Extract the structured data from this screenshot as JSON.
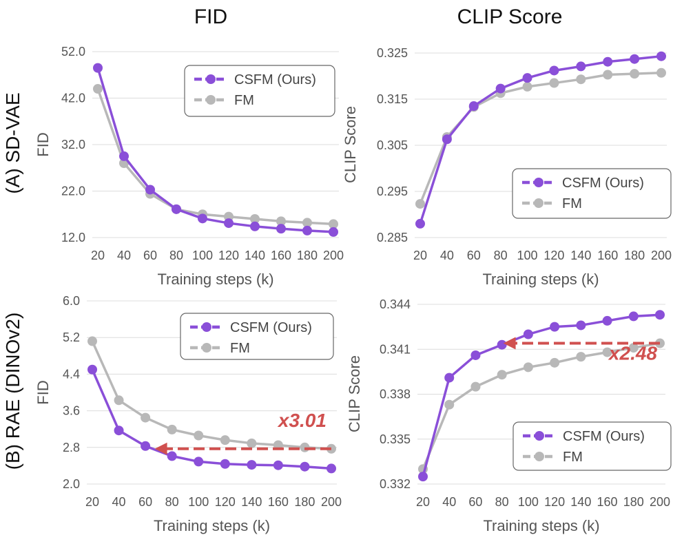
{
  "column_titles": [
    "FID",
    "CLIP Score"
  ],
  "row_titles": [
    "(A) SD-VAE",
    "(B) RAE (DINOv2)"
  ],
  "colors": {
    "csfm": "#8a4fd8",
    "fm": "#b8b8b8",
    "annotation": "#d0504f",
    "grid": "#dcdcdc"
  },
  "chart_data": [
    {
      "id": "a-fid",
      "type": "line",
      "title": "FID",
      "xlabel": "Training steps (k)",
      "ylabel": "FID",
      "x": [
        20,
        40,
        60,
        80,
        100,
        120,
        140,
        160,
        180,
        200
      ],
      "ylim": [
        12.0,
        52.0
      ],
      "yticks": [
        12.0,
        22.0,
        32.0,
        42.0,
        52.0
      ],
      "ytick_labels": [
        "12.0",
        "22.0",
        "32.0",
        "42.0",
        "52.0"
      ],
      "legend": "top-right",
      "series": [
        {
          "name": "CSFM (Ours)",
          "values": [
            48.5,
            29.5,
            22.3,
            18.1,
            16.1,
            15.1,
            14.4,
            13.9,
            13.5,
            13.2
          ]
        },
        {
          "name": "FM",
          "values": [
            44.0,
            28.0,
            21.4,
            18.1,
            17.0,
            16.5,
            16.0,
            15.5,
            15.2,
            14.9
          ]
        }
      ]
    },
    {
      "id": "a-clip",
      "type": "line",
      "title": "CLIP Score",
      "xlabel": "Training steps (k)",
      "ylabel": "CLIP Score",
      "x": [
        20,
        40,
        60,
        80,
        100,
        120,
        140,
        160,
        180,
        200
      ],
      "ylim": [
        0.285,
        0.325
      ],
      "yticks": [
        0.285,
        0.295,
        0.305,
        0.315,
        0.325
      ],
      "ytick_labels": [
        "0.285",
        "0.295",
        "0.305",
        "0.315",
        "0.325"
      ],
      "legend": "bottom-right",
      "series": [
        {
          "name": "CSFM (Ours)",
          "values": [
            0.288,
            0.3063,
            0.3135,
            0.3173,
            0.3196,
            0.3212,
            0.3221,
            0.3231,
            0.3237,
            0.3243
          ]
        },
        {
          "name": "FM",
          "values": [
            0.2923,
            0.3068,
            0.3133,
            0.3163,
            0.3177,
            0.3185,
            0.3193,
            0.3203,
            0.3205,
            0.3207
          ]
        }
      ]
    },
    {
      "id": "b-fid",
      "type": "line",
      "title": "FID",
      "xlabel": "Training steps (k)",
      "ylabel": "FID",
      "x": [
        20,
        40,
        60,
        80,
        100,
        120,
        140,
        160,
        180,
        200
      ],
      "ylim": [
        2.0,
        6.0
      ],
      "yticks": [
        2.0,
        2.8,
        3.6,
        4.4,
        5.2,
        6.0
      ],
      "ytick_labels": [
        "2.0",
        "2.8",
        "3.6",
        "4.4",
        "5.2",
        "6.0"
      ],
      "legend": "top-right",
      "series": [
        {
          "name": "CSFM (Ours)",
          "values": [
            4.5,
            3.17,
            2.83,
            2.61,
            2.49,
            2.44,
            2.42,
            2.41,
            2.38,
            2.34
          ]
        },
        {
          "name": "FM",
          "values": [
            5.12,
            3.83,
            3.45,
            3.19,
            3.06,
            2.96,
            2.89,
            2.85,
            2.8,
            2.77
          ]
        }
      ],
      "annotation": {
        "text": "x3.01",
        "arrow_from_x": 200,
        "arrow_to_x": 67,
        "arrow_y": 2.77,
        "text_x": 160,
        "text_y": 3.25
      }
    },
    {
      "id": "b-clip",
      "type": "line",
      "title": "CLIP Score",
      "xlabel": "Training steps (k)",
      "ylabel": "CLIP Score",
      "x": [
        20,
        40,
        60,
        80,
        100,
        120,
        140,
        160,
        180,
        200
      ],
      "ylim": [
        0.332,
        0.344
      ],
      "yticks": [
        0.332,
        0.335,
        0.338,
        0.341,
        0.344
      ],
      "ytick_labels": [
        "0.332",
        "0.335",
        "0.338",
        "0.341",
        "0.344"
      ],
      "legend": "bottom-right",
      "series": [
        {
          "name": "CSFM (Ours)",
          "values": [
            0.3325,
            0.3391,
            0.3406,
            0.3413,
            0.342,
            0.3425,
            0.3426,
            0.3429,
            0.3432,
            0.3433
          ]
        },
        {
          "name": "FM",
          "values": [
            0.333,
            0.3373,
            0.3385,
            0.3393,
            0.3398,
            0.3401,
            0.3405,
            0.3408,
            0.3411,
            0.3414
          ]
        }
      ],
      "annotation": {
        "text": "x2.48",
        "arrow_from_x": 200,
        "arrow_to_x": 81,
        "arrow_y": 0.3414,
        "text_x": 200,
        "text_y": 0.3403
      }
    }
  ]
}
